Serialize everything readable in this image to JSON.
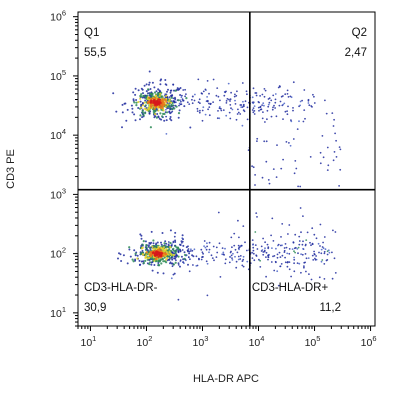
{
  "chart_data": {
    "type": "scatter",
    "subtype": "flow-cytometry-density-dot-plot",
    "xlabel": "HLA-DR APC",
    "ylabel": "CD3 PE",
    "x_scale": "log",
    "y_scale": "log",
    "xlim": [
      6,
      1200000
    ],
    "ylim": [
      6,
      1200000
    ],
    "x_ticks": [
      {
        "base": "10",
        "exp": "1",
        "value": 10
      },
      {
        "base": "10",
        "exp": "2",
        "value": 100
      },
      {
        "base": "10",
        "exp": "3",
        "value": 1000
      },
      {
        "base": "10",
        "exp": "4",
        "value": 10000
      },
      {
        "base": "10",
        "exp": "5",
        "value": 100000
      },
      {
        "base": "10",
        "exp": "6",
        "value": 1000000
      }
    ],
    "y_ticks": [
      {
        "base": "10",
        "exp": "1",
        "value": 10
      },
      {
        "base": "10",
        "exp": "2",
        "value": 100
      },
      {
        "base": "10",
        "exp": "3",
        "value": 1000
      },
      {
        "base": "10",
        "exp": "4",
        "value": 10000
      },
      {
        "base": "10",
        "exp": "5",
        "value": 100000
      },
      {
        "base": "10",
        "exp": "6",
        "value": 1000000
      }
    ],
    "gates": {
      "x": 7000,
      "y": 1200
    },
    "quadrants": [
      {
        "id": "Q1",
        "label": "Q1",
        "value": "55,5",
        "position": "top-left"
      },
      {
        "id": "Q2",
        "label": "Q2",
        "value": "2,47",
        "position": "top-right"
      },
      {
        "id": "Q3",
        "label": "CD3-HLA-DR-",
        "value": "30,9",
        "position": "bottom-left"
      },
      {
        "id": "Q4",
        "label": "CD3-HLA-DR+",
        "value": "11,2",
        "position": "bottom-right"
      }
    ],
    "populations": [
      {
        "quadrant": "Q1",
        "center_x": 150,
        "center_y": 35000,
        "spread_log_x": 0.2,
        "spread_log_y": 0.12,
        "tail_to_x": 100000
      },
      {
        "quadrant": "Q3",
        "center_x": 160,
        "center_y": 100,
        "spread_log_x": 0.2,
        "spread_log_y": 0.1,
        "tail_to_x": 200000
      }
    ],
    "density_colors": [
      "#1e2a9e",
      "#2e8b57",
      "#e6d32a",
      "#e8731c",
      "#d7191c"
    ],
    "grid": false,
    "legend": "none"
  }
}
